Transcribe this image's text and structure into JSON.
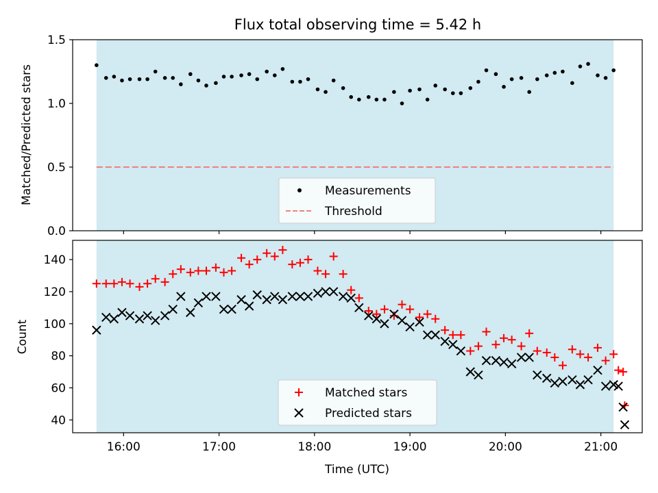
{
  "title": "Flux total observing time = 5.42 h",
  "colors": {
    "shade": "#add8e6",
    "measurement": "#000000",
    "threshold": "#f08080",
    "matched": "#ff0000",
    "predicted": "#000000"
  },
  "chart_data": [
    {
      "type": "scatter",
      "title": "Flux total observing time = 5.42 h",
      "ylabel": "Matched/Predicted stars",
      "xlim": [
        "15:28",
        "21:26"
      ],
      "ylim": [
        0,
        1.5
      ],
      "yticks": [
        "0.0",
        "0.5",
        "1.0",
        "1.5"
      ],
      "shaded_x_range": [
        "15:43",
        "21:08"
      ],
      "legend_position": "lower-center",
      "threshold": {
        "name": "Threshold",
        "value": 0.5
      },
      "series": [
        {
          "name": "Measurements",
          "x": [
            "15:43",
            "15:49",
            "15:54",
            "15:59",
            "16:04",
            "16:10",
            "16:15",
            "16:20",
            "16:26",
            "16:31",
            "16:36",
            "16:42",
            "16:47",
            "16:52",
            "16:58",
            "17:03",
            "17:08",
            "17:14",
            "17:19",
            "17:24",
            "17:30",
            "17:35",
            "17:40",
            "17:46",
            "17:51",
            "17:56",
            "18:02",
            "18:07",
            "18:12",
            "18:18",
            "18:23",
            "18:28",
            "18:34",
            "18:39",
            "18:44",
            "18:50",
            "18:55",
            "19:00",
            "19:06",
            "19:11",
            "19:16",
            "19:22",
            "19:27",
            "19:32",
            "19:38",
            "19:43",
            "19:48",
            "19:54",
            "19:59",
            "20:04",
            "20:10",
            "20:15",
            "20:20",
            "20:26",
            "20:31",
            "20:36",
            "20:42",
            "20:47",
            "20:52",
            "20:58",
            "21:03",
            "21:08"
          ],
          "y": [
            1.3,
            1.2,
            1.21,
            1.18,
            1.19,
            1.19,
            1.19,
            1.25,
            1.2,
            1.2,
            1.15,
            1.23,
            1.18,
            1.14,
            1.16,
            1.21,
            1.21,
            1.22,
            1.23,
            1.19,
            1.25,
            1.22,
            1.27,
            1.17,
            1.17,
            1.19,
            1.11,
            1.09,
            1.18,
            1.12,
            1.05,
            1.03,
            1.05,
            1.03,
            1.03,
            1.09,
            1.0,
            1.1,
            1.11,
            1.03,
            1.14,
            1.11,
            1.08,
            1.08,
            1.12,
            1.17,
            1.26,
            1.23,
            1.13,
            1.19,
            1.2,
            1.09,
            1.19,
            1.22,
            1.24,
            1.25,
            1.16,
            1.29,
            1.31,
            1.22,
            1.2,
            1.26
          ]
        }
      ]
    },
    {
      "type": "scatter",
      "xlabel": "Time (UTC)",
      "ylabel": "Count",
      "xlim": [
        "15:28",
        "21:26"
      ],
      "ylim": [
        32,
        152
      ],
      "yticks": [
        "40",
        "60",
        "80",
        "100",
        "120",
        "140"
      ],
      "xticks": [
        "16:00",
        "17:00",
        "18:00",
        "19:00",
        "20:00",
        "21:00"
      ],
      "shaded_x_range": [
        "15:43",
        "21:08"
      ],
      "legend_position": "lower-center",
      "series": [
        {
          "name": "Matched stars",
          "x": [
            "15:43",
            "15:49",
            "15:54",
            "15:59",
            "16:04",
            "16:10",
            "16:15",
            "16:20",
            "16:26",
            "16:31",
            "16:36",
            "16:42",
            "16:47",
            "16:52",
            "16:58",
            "17:03",
            "17:08",
            "17:14",
            "17:19",
            "17:24",
            "17:30",
            "17:35",
            "17:40",
            "17:46",
            "17:51",
            "17:56",
            "18:02",
            "18:07",
            "18:12",
            "18:18",
            "18:23",
            "18:28",
            "18:34",
            "18:39",
            "18:44",
            "18:50",
            "18:55",
            "19:00",
            "19:06",
            "19:11",
            "19:16",
            "19:22",
            "19:27",
            "19:32",
            "19:38",
            "19:43",
            "19:48",
            "19:54",
            "19:59",
            "20:04",
            "20:10",
            "20:15",
            "20:20",
            "20:26",
            "20:31",
            "20:36",
            "20:42",
            "20:47",
            "20:52",
            "20:58",
            "21:03",
            "21:08",
            "21:11",
            "21:14"
          ],
          "y": [
            125,
            125,
            125,
            126,
            125,
            123,
            125,
            128,
            126,
            131,
            134,
            132,
            133,
            133,
            135,
            132,
            133,
            141,
            137,
            140,
            144,
            142,
            146,
            137,
            138,
            140,
            133,
            131,
            142,
            131,
            121,
            116,
            108,
            106,
            109,
            105,
            112,
            109,
            104,
            106,
            103,
            96,
            93,
            93,
            83,
            86,
            95,
            87,
            91,
            90,
            86,
            94,
            83,
            82,
            79,
            74,
            84,
            81,
            79,
            85,
            77,
            81,
            71,
            70
          ]
        },
        {
          "name": "Predicted stars",
          "x": [
            "15:43",
            "15:49",
            "15:54",
            "15:59",
            "16:04",
            "16:10",
            "16:15",
            "16:20",
            "16:26",
            "16:31",
            "16:36",
            "16:42",
            "16:47",
            "16:52",
            "16:58",
            "17:03",
            "17:08",
            "17:14",
            "17:19",
            "17:24",
            "17:30",
            "17:35",
            "17:40",
            "17:46",
            "17:51",
            "17:56",
            "18:02",
            "18:07",
            "18:12",
            "18:18",
            "18:23",
            "18:28",
            "18:34",
            "18:39",
            "18:44",
            "18:50",
            "18:55",
            "19:00",
            "19:06",
            "19:11",
            "19:16",
            "19:22",
            "19:27",
            "19:32",
            "19:38",
            "19:43",
            "19:48",
            "19:54",
            "19:59",
            "20:04",
            "20:10",
            "20:15",
            "20:20",
            "20:26",
            "20:31",
            "20:36",
            "20:42",
            "20:47",
            "20:52",
            "20:58",
            "21:03",
            "21:08",
            "21:11",
            "21:14"
          ],
          "y": [
            96,
            104,
            103,
            107,
            105,
            103,
            105,
            102,
            105,
            109,
            117,
            107,
            113,
            117,
            117,
            109,
            109,
            115,
            111,
            118,
            115,
            117,
            115,
            117,
            117,
            117,
            119,
            120,
            120,
            117,
            116,
            110,
            105,
            103,
            100,
            106,
            102,
            98,
            101,
            93,
            93,
            89,
            87,
            83,
            70,
            68,
            77,
            77,
            76,
            75,
            79,
            79,
            68,
            66,
            63,
            64,
            65,
            62,
            65,
            71,
            61,
            62,
            61,
            48
          ]
        }
      ],
      "extra_points": {
        "matched": {
          "x": "21:15",
          "y": 49
        },
        "predicted": {
          "x": "21:15",
          "y": 37
        }
      }
    }
  ]
}
